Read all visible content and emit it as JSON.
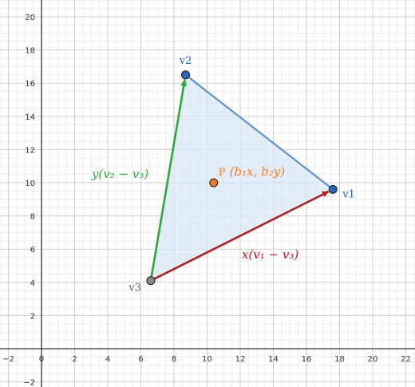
{
  "colors": {
    "background": "#ffffff",
    "grid_minor": "#ececec",
    "grid_major": "#cfcfcf",
    "axis": "#333333",
    "triangle_fill": "#dbe8f7",
    "triangle_edge": "#5b93cf",
    "vertex_blue": "#2b65b3",
    "vertex_gray": "#8a8a8a",
    "point_orange": "#f07b22",
    "arrow_red": "#b22222",
    "arrow_green": "#2ea83a"
  },
  "axes": {
    "x_ticks": [
      "−2",
      "0",
      "2",
      "4",
      "6",
      "8",
      "10",
      "12",
      "14",
      "16",
      "18",
      "20",
      "22"
    ],
    "y_ticks": [
      "−2",
      "2",
      "4",
      "6",
      "8",
      "10",
      "12",
      "14",
      "16",
      "18",
      "20"
    ]
  },
  "chart_data": {
    "type": "scatter",
    "xlim": [
      -2,
      22
    ],
    "ylim": [
      -2,
      21
    ],
    "grid": true,
    "points": [
      {
        "id": "v1",
        "label": "v1",
        "x": 17.6,
        "y": 9.6
      },
      {
        "id": "v2",
        "label": "v2",
        "x": 8.7,
        "y": 16.5
      },
      {
        "id": "v3",
        "label": "v3",
        "x": 6.6,
        "y": 4.1
      },
      {
        "id": "P",
        "label": "P",
        "x": 10.4,
        "y": 10.0
      }
    ],
    "triangle": [
      "v1",
      "v2",
      "v3"
    ],
    "vectors": [
      {
        "from": "v3",
        "to": "v1",
        "color": "#b22222",
        "label": "x(v1 − v3)"
      },
      {
        "from": "v3",
        "to": "v2",
        "color": "#2ea83a",
        "label": "y(v2 − v3)"
      }
    ]
  },
  "labels": {
    "v1": "v1",
    "v2": "v2",
    "v3": "v3",
    "p_prefix": "P",
    "p_expr": "(b₁x, b₂y)",
    "red_expr": "x(v₁ − v₃)",
    "green_expr": "y(v₂ − v₃)"
  }
}
